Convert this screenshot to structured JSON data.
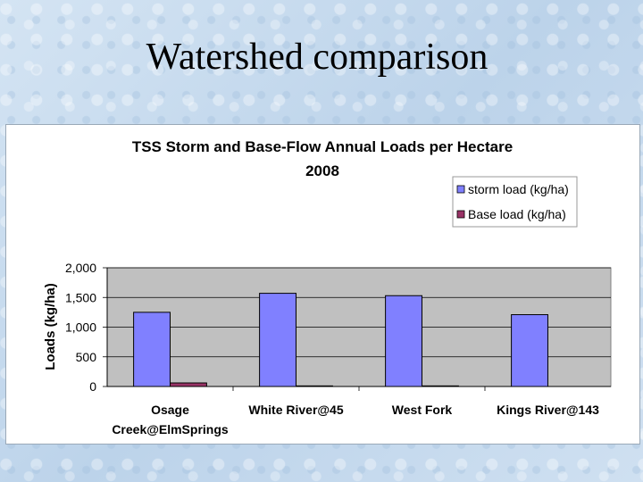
{
  "slide": {
    "title": "Watershed comparison"
  },
  "colors": {
    "storm": "#8080ff",
    "base": "#993366",
    "plot_bg": "#c0c0c0"
  },
  "chart_data": {
    "type": "bar",
    "title_line1": "TSS Storm and Base-Flow Annual Loads per Hectare",
    "title_line2": "2008",
    "ylabel": "Loads (kg/ha)",
    "xlabel": "",
    "ylim": [
      0,
      2000
    ],
    "yticks": [
      "2,000",
      "1,500",
      "1,000",
      "500",
      "0"
    ],
    "ytick_values": [
      2000,
      1500,
      1000,
      500,
      0
    ],
    "categories": [
      {
        "line1": "Osage",
        "line2": "Creek@ElmSprings"
      },
      {
        "line1": "White River@45",
        "line2": ""
      },
      {
        "line1": "West Fork",
        "line2": ""
      },
      {
        "line1": "Kings River@143",
        "line2": ""
      }
    ],
    "series": [
      {
        "name": "storm load (kg/ha)",
        "values": [
          1250,
          1570,
          1530,
          1210
        ]
      },
      {
        "name": "Base load (kg/ha)",
        "values": [
          60,
          10,
          10,
          0
        ]
      }
    ],
    "legend_position": "top-right",
    "grid": true
  }
}
